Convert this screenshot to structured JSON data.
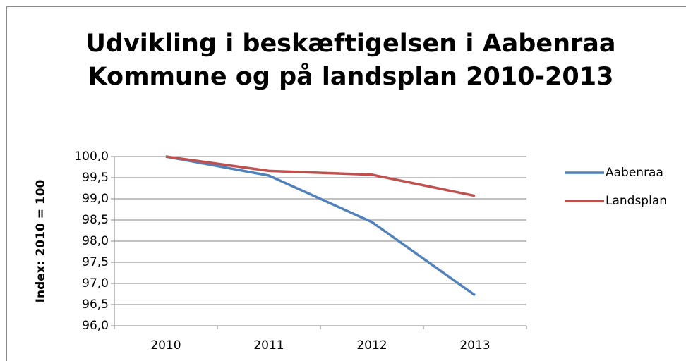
{
  "chart_data": {
    "type": "line",
    "title": [
      "Udvikling i beskæftigelsen i Aabenraa",
      "Kommune og på landsplan 2010-2013"
    ],
    "y_label": "Index: 2010 = 100",
    "categories": [
      "2010",
      "2011",
      "2012",
      "2013"
    ],
    "series": [
      {
        "name": "Aabenraa",
        "color": "#4f81bd",
        "values": [
          100,
          99.55,
          98.45,
          96.72
        ]
      },
      {
        "name": "Landsplan",
        "color": "#c0504d",
        "values": [
          100,
          99.66,
          99.57,
          99.07
        ]
      }
    ],
    "ylim": [
      96,
      100
    ],
    "yticks": [
      {
        "value": 96,
        "label": "96,0"
      },
      {
        "value": 96.5,
        "label": "96,5"
      },
      {
        "value": 97,
        "label": "97,0"
      },
      {
        "value": 97.5,
        "label": "97,5"
      },
      {
        "value": 98,
        "label": "98,0"
      },
      {
        "value": 98.5,
        "label": "98,5"
      },
      {
        "value": 99,
        "label": "99,0"
      },
      {
        "value": 99.5,
        "label": "99,5"
      },
      {
        "value": 100,
        "label": "100,0"
      }
    ],
    "grid": true,
    "legend": "right"
  }
}
